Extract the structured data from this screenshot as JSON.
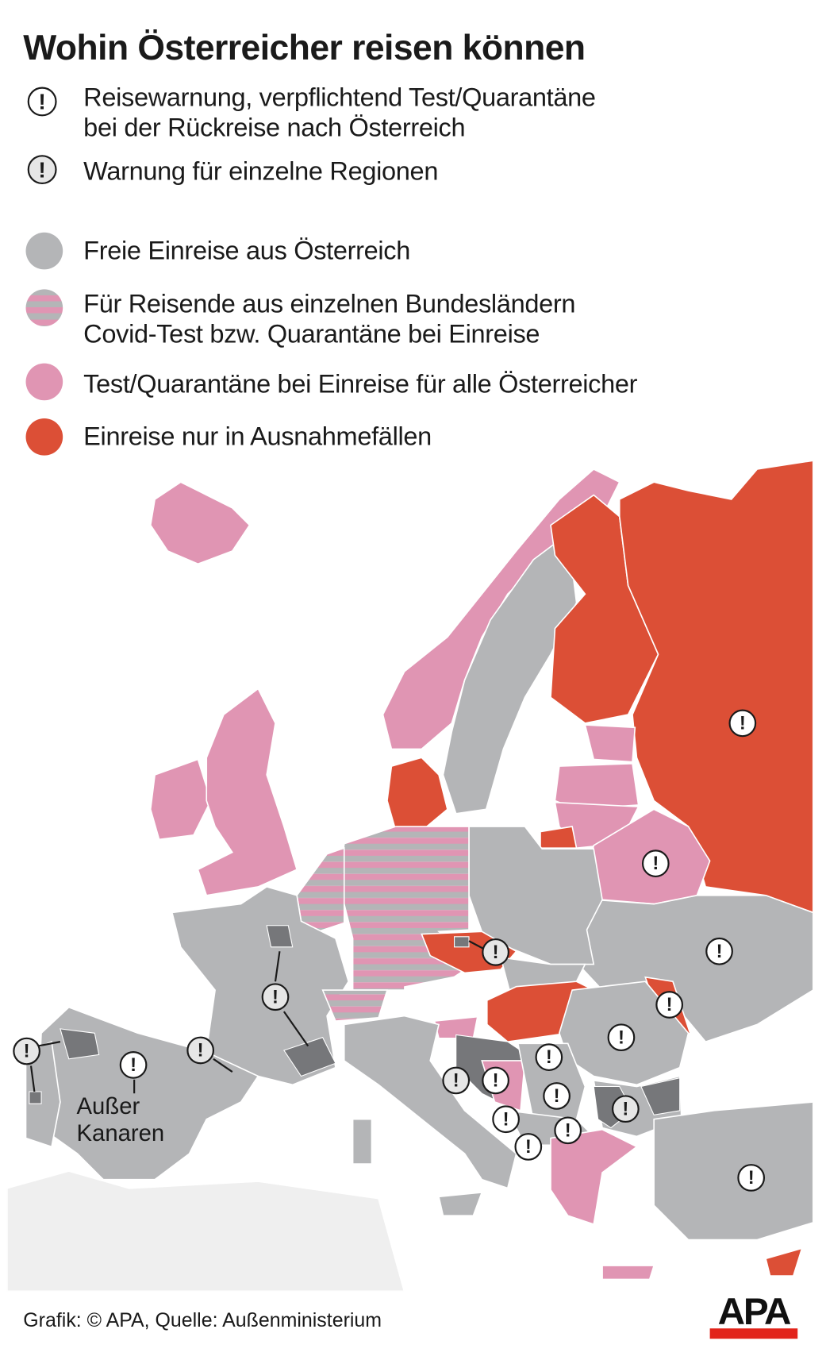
{
  "title": "Wohin Österreicher reisen können",
  "legend": {
    "warning_icons": [
      {
        "icon": "warning-icon",
        "line1": "Reisewarnung, verpflichtend Test/Quarantäne",
        "line2": "bei der Rückreise nach Österreich"
      },
      {
        "icon": "regional-warning-icon",
        "line1": "Warnung für einzelne Regionen"
      }
    ],
    "categories": [
      {
        "color": "#b4b5b7",
        "line1": "Freie Einreise aus Österreich"
      },
      {
        "color": "striped #b4b5b7/#e095b3",
        "line1": "Für Reisende aus einzelnen Bundesländern",
        "line2": "Covid-Test bzw. Quarantäne bei Einreise"
      },
      {
        "color": "#e095b3",
        "line1": "Test/Quarantäne bei Einreise für alle Österreicher"
      },
      {
        "color": "#dc4f36",
        "line1": "Einreise nur in Ausnahmefällen"
      }
    ],
    "warn_glyph": "!"
  },
  "map": {
    "annotation_line1": "Außer",
    "annotation_line2": "Kanaren"
  },
  "footer": {
    "credit": "Grafik: © APA, Quelle: Außenministerium",
    "logo": "APA"
  }
}
